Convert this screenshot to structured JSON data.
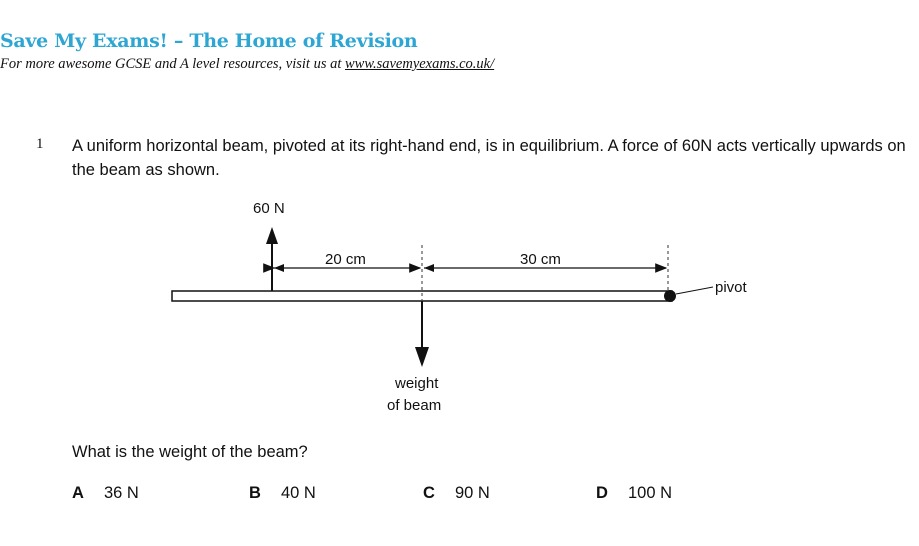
{
  "header": {
    "title": "Save My Exams! – The Home of Revision",
    "subtitle_prefix": "For more awesome GCSE and A level resources, visit us at ",
    "link": "www.savemyexams.co.uk/"
  },
  "question": {
    "number": "1",
    "text": "A uniform horizontal beam, pivoted at its right-hand end, is in equilibrium. A force of 60N acts vertically upwards on the beam as shown.",
    "prompt": "What is the weight of the beam?"
  },
  "diagram": {
    "force_label": "60 N",
    "dist1": "20 cm",
    "dist2": "30 cm",
    "pivot_label": "pivot",
    "weight_line1": "weight",
    "weight_line2": "of beam"
  },
  "options": [
    {
      "letter": "A",
      "value": "36 N"
    },
    {
      "letter": "B",
      "value": "40 N"
    },
    {
      "letter": "C",
      "value": "90 N"
    },
    {
      "letter": "D",
      "value": "100 N"
    }
  ],
  "colors": {
    "brand": "#2ea6d3"
  }
}
